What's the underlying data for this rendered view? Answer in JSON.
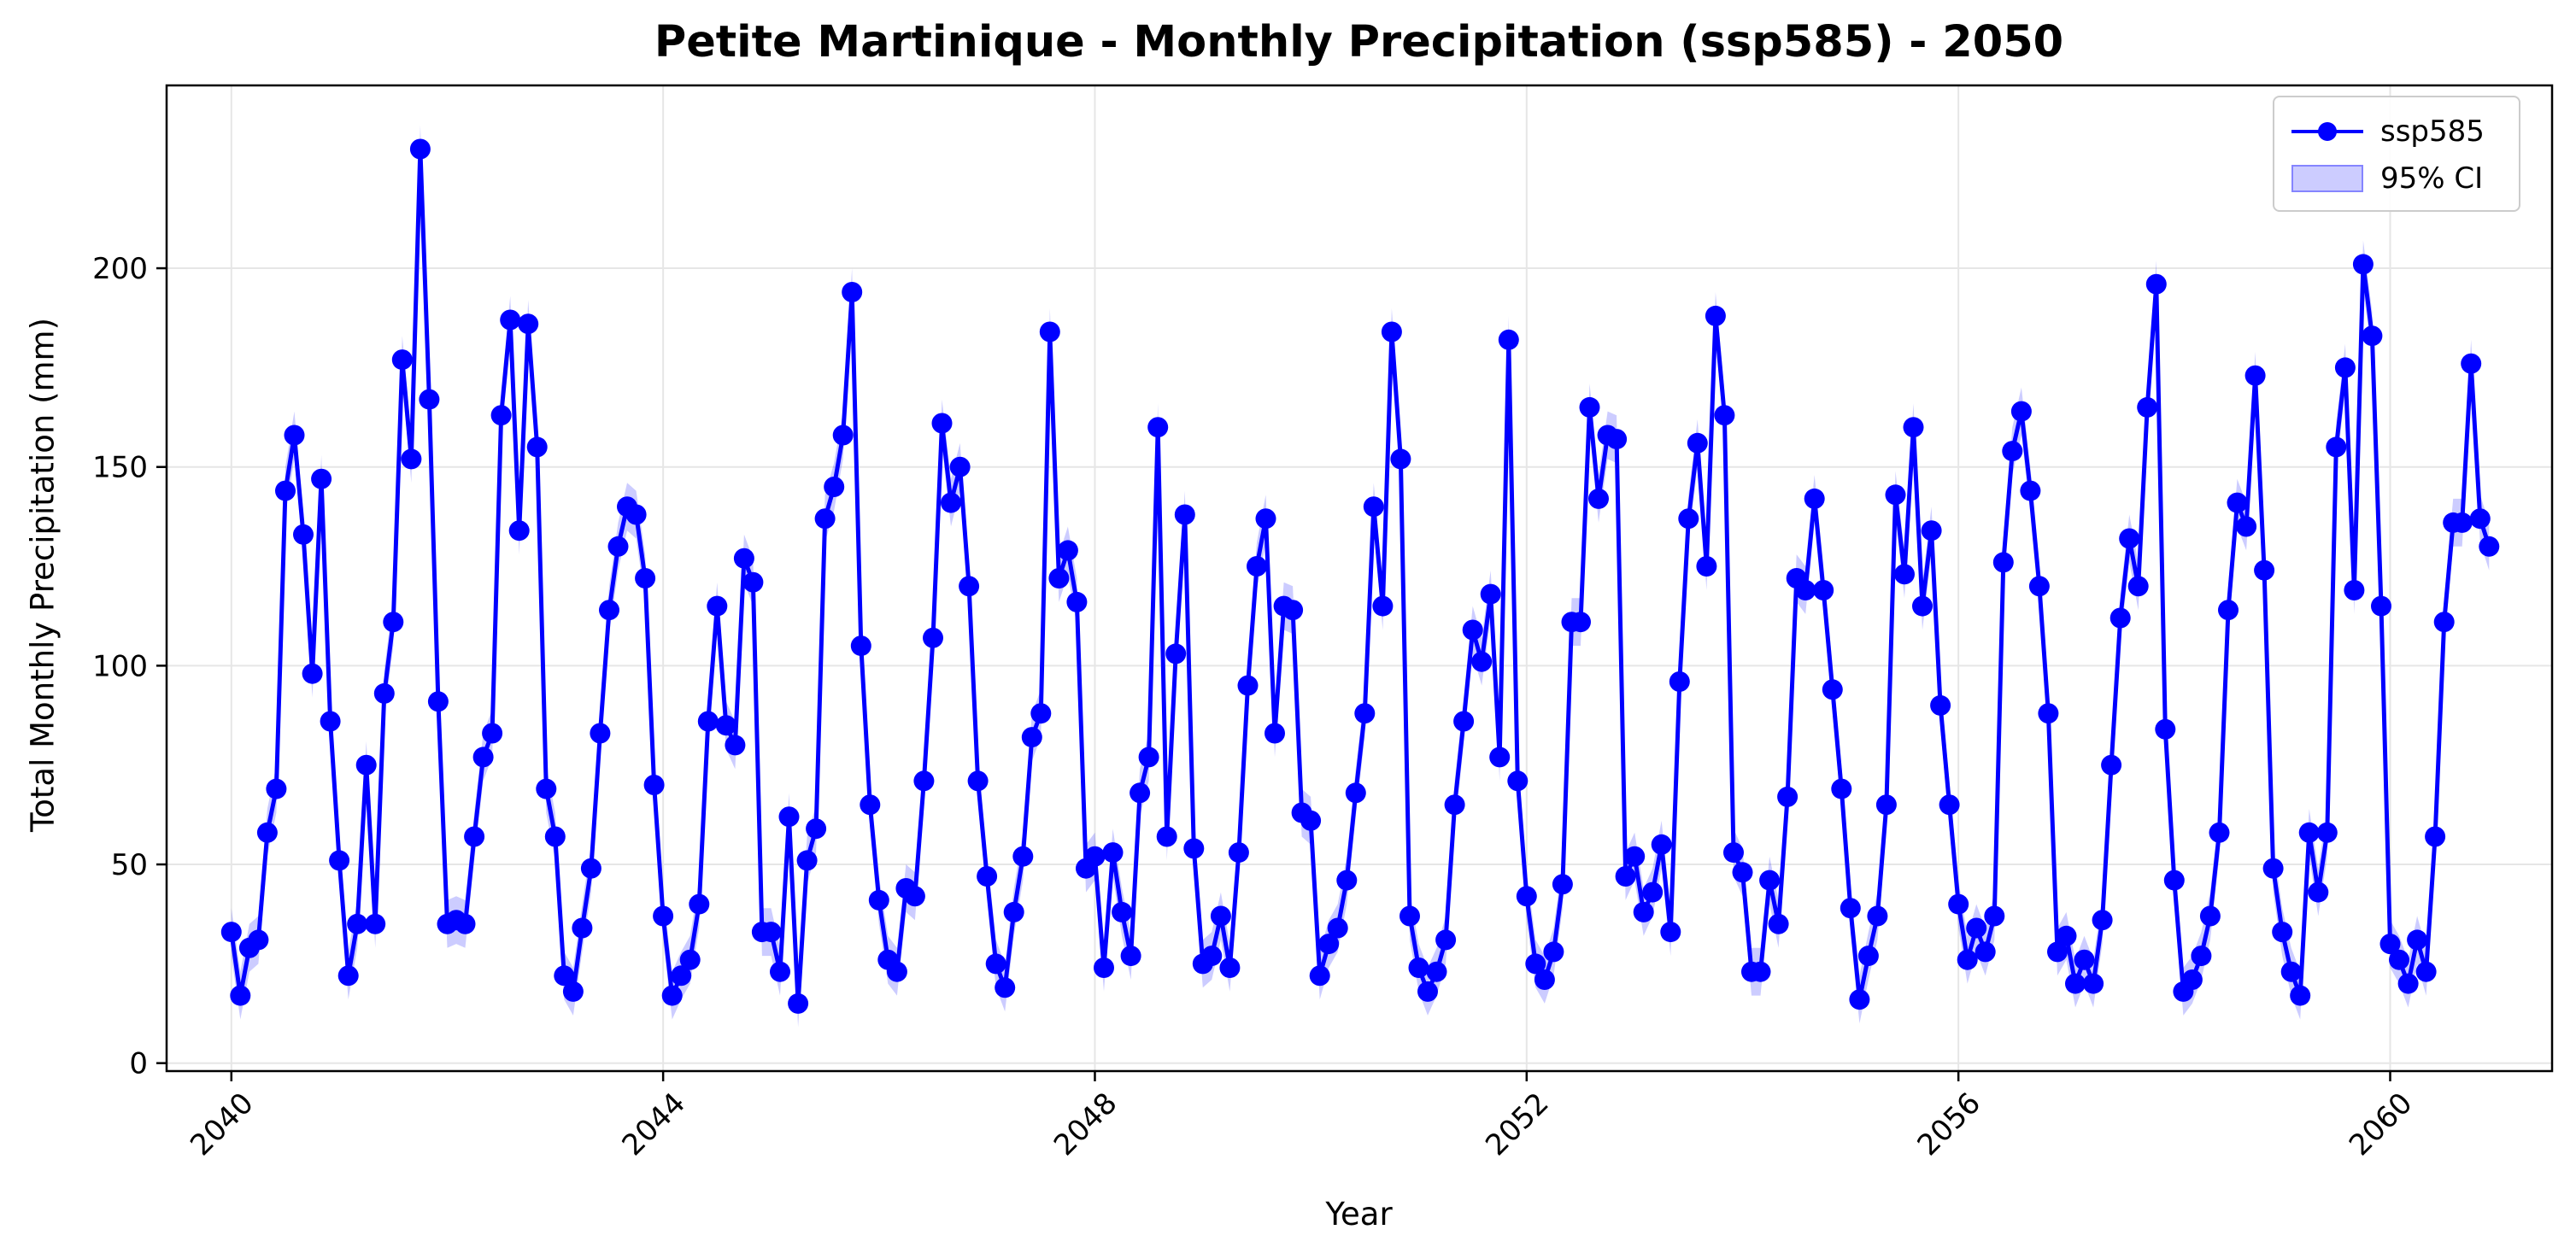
{
  "chart_data": {
    "type": "line",
    "title": "Petite Martinique - Monthly Precipitation (ssp585) - 2050",
    "xlabel": "Year",
    "ylabel": "Total Monthly Precipitation (mm)",
    "x_start": "2040-01",
    "x_step": "1 month",
    "xlim": [
      2039.4,
      2061.5
    ],
    "ylim": [
      -2,
      246
    ],
    "xticks": [
      2040,
      2044,
      2048,
      2052,
      2056,
      2060
    ],
    "yticks": [
      0,
      50,
      100,
      150,
      200
    ],
    "grid": true,
    "legend_position": "top-right",
    "series": [
      {
        "name": "ssp585",
        "color": "#0000ff",
        "marker": "circle",
        "values": [
          33,
          17,
          29,
          31,
          58,
          69,
          144,
          158,
          133,
          98,
          147,
          86,
          51,
          22,
          35,
          75,
          35,
          93,
          111,
          177,
          152,
          230,
          167,
          91,
          35,
          36,
          35,
          57,
          77,
          83,
          163,
          187,
          134,
          186,
          155,
          69,
          57,
          22,
          18,
          34,
          49,
          83,
          114,
          130,
          140,
          138,
          122,
          70,
          37,
          17,
          22,
          26,
          40,
          86,
          115,
          85,
          80,
          127,
          121,
          33,
          33,
          23,
          62,
          15,
          51,
          59,
          137,
          145,
          158,
          194,
          105,
          65,
          41,
          26,
          23,
          44,
          42,
          71,
          107,
          161,
          141,
          150,
          120,
          71,
          47,
          25,
          19,
          38,
          52,
          82,
          88,
          184,
          122,
          129,
          116,
          49,
          52,
          24,
          53,
          38,
          27,
          68,
          77,
          160,
          57,
          103,
          138,
          54,
          25,
          27,
          37,
          24,
          53,
          95,
          125,
          137,
          83,
          115,
          114,
          63,
          61,
          22,
          30,
          34,
          46,
          68,
          88,
          140,
          115,
          184,
          152,
          37,
          24,
          18,
          23,
          31,
          65,
          86,
          109,
          101,
          118,
          77,
          182,
          71,
          42,
          25,
          21,
          28,
          45,
          111,
          111,
          165,
          142,
          158,
          157,
          47,
          52,
          38,
          43,
          55,
          33,
          96,
          137,
          156,
          125,
          188,
          163,
          53,
          48,
          23,
          23,
          46,
          35,
          67,
          122,
          119,
          142,
          119,
          94,
          69,
          39,
          16,
          27,
          37,
          65,
          143,
          123,
          160,
          115,
          134,
          90,
          65,
          40,
          26,
          34,
          28,
          37,
          126,
          154,
          164,
          144,
          120,
          88,
          28,
          32,
          20,
          26,
          20,
          36,
          75,
          112,
          132,
          120,
          165,
          196,
          84,
          46,
          18,
          21,
          27,
          37,
          58,
          114,
          141,
          135,
          173,
          124,
          49,
          33,
          23,
          17,
          58,
          43,
          58,
          155,
          175,
          119,
          201,
          183,
          115,
          30,
          26,
          20,
          31,
          23,
          57,
          111,
          136,
          136,
          176,
          137,
          130
        ]
      }
    ],
    "ci_band": {
      "name": "95% CI",
      "color": "#0000ff",
      "half_width_mm": 6
    },
    "legend": [
      "ssp585",
      "95% CI"
    ]
  }
}
